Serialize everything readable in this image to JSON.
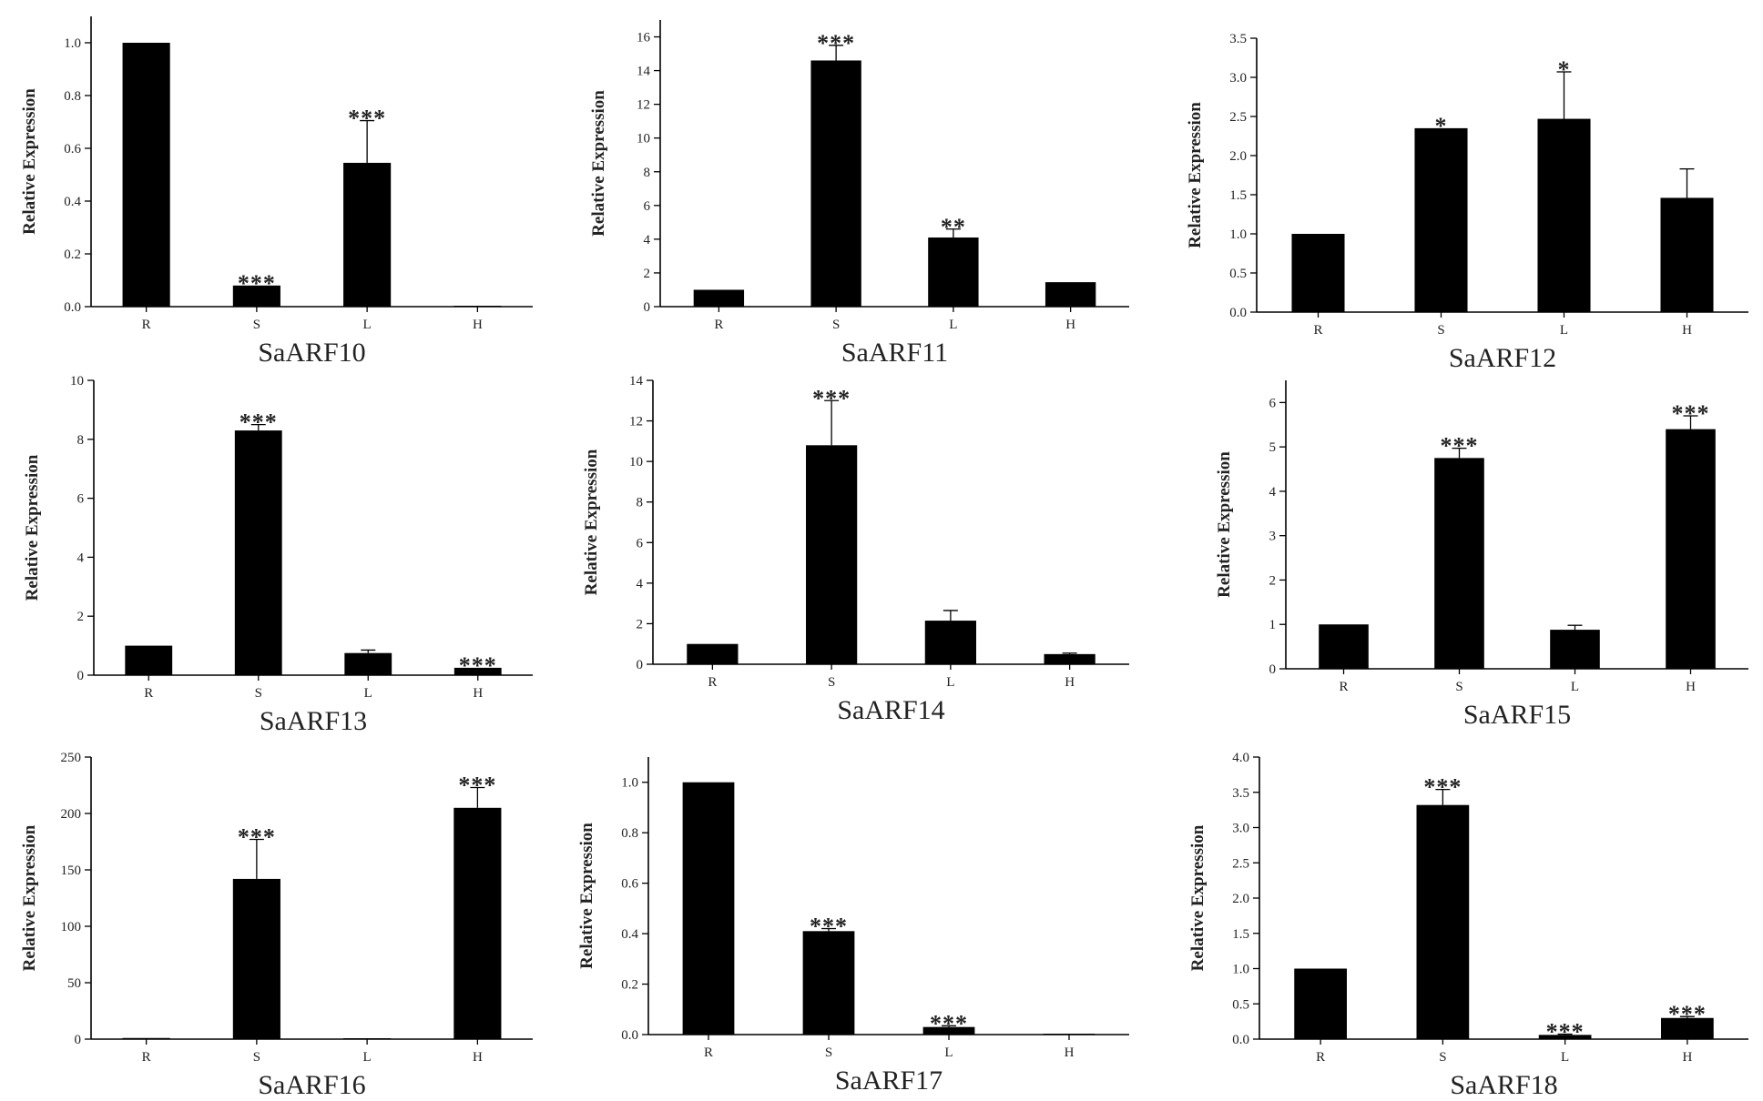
{
  "chart_data": [
    {
      "type": "bar",
      "title": "SaARF10",
      "ylabel": "Relative Expression",
      "categories": [
        "R",
        "S",
        "L",
        "H"
      ],
      "values": [
        1.0,
        0.08,
        0.545,
        0.0
      ],
      "errors": [
        0,
        0,
        0.16,
        0
      ],
      "significance": [
        "",
        "***",
        "***",
        ""
      ],
      "ylim": [
        0,
        1.1
      ],
      "yticks": [
        "0.0",
        "0.2",
        "0.4",
        "0.6",
        "0.8",
        "1.0"
      ]
    },
    {
      "type": "bar",
      "title": "SaARF11",
      "ylabel": "Relative Expression",
      "categories": [
        "R",
        "S",
        "L",
        "H"
      ],
      "values": [
        1.0,
        14.6,
        4.1,
        1.45
      ],
      "errors": [
        0,
        0.9,
        0.5,
        0
      ],
      "significance": [
        "",
        "***",
        "**",
        ""
      ],
      "ylim": [
        0,
        17
      ],
      "yticks": [
        "0",
        "2",
        "4",
        "6",
        "8",
        "10",
        "12",
        "14",
        "16"
      ]
    },
    {
      "type": "bar",
      "title": "SaARF12",
      "ylabel": "Relative Expression",
      "categories": [
        "R",
        "S",
        "L",
        "H"
      ],
      "values": [
        1.0,
        2.35,
        2.47,
        1.46
      ],
      "errors": [
        0,
        0,
        0.6,
        0.37
      ],
      "significance": [
        "",
        "*",
        "*",
        ""
      ],
      "ylim": [
        0,
        3.5
      ],
      "yticks": [
        "0.0",
        "0.5",
        "1.0",
        "1.5",
        "2.0",
        "2.5",
        "3.0",
        "3.5"
      ]
    },
    {
      "type": "bar",
      "title": "SaARF13",
      "ylabel": "Relative Expression",
      "categories": [
        "R",
        "S",
        "L",
        "H"
      ],
      "values": [
        1.0,
        8.3,
        0.75,
        0.25
      ],
      "errors": [
        0,
        0.2,
        0.1,
        0
      ],
      "significance": [
        "",
        "***",
        "",
        "***"
      ],
      "ylim": [
        0,
        10
      ],
      "yticks": [
        "0",
        "2",
        "4",
        "6",
        "8",
        "10"
      ]
    },
    {
      "type": "bar",
      "title": "SaARF14",
      "ylabel": "Relative Expression",
      "categories": [
        "R",
        "S",
        "L",
        "H"
      ],
      "values": [
        1.0,
        10.8,
        2.15,
        0.5
      ],
      "errors": [
        0,
        2.2,
        0.5,
        0.05
      ],
      "significance": [
        "",
        "***",
        "",
        ""
      ],
      "ylim": [
        0,
        14
      ],
      "yticks": [
        "0",
        "2",
        "4",
        "6",
        "8",
        "10",
        "12",
        "14"
      ]
    },
    {
      "type": "bar",
      "title": "SaARF15",
      "ylabel": "Relative Expression",
      "categories": [
        "R",
        "S",
        "L",
        "H"
      ],
      "values": [
        1.0,
        4.75,
        0.88,
        5.4
      ],
      "errors": [
        0,
        0.22,
        0.1,
        0.3
      ],
      "significance": [
        "",
        "***",
        "",
        "***"
      ],
      "ylim": [
        0,
        6.5
      ],
      "yticks": [
        "0",
        "1",
        "2",
        "3",
        "4",
        "5",
        "6"
      ]
    },
    {
      "type": "bar",
      "title": "SaARF16",
      "ylabel": "Relative Expression",
      "categories": [
        "R",
        "S",
        "L",
        "H"
      ],
      "values": [
        1.0,
        142,
        0,
        205
      ],
      "errors": [
        0,
        35,
        0,
        18
      ],
      "significance": [
        "",
        "***",
        "",
        "***"
      ],
      "ylim": [
        0,
        250
      ],
      "yticks": [
        "0",
        "50",
        "100",
        "150",
        "200",
        "250"
      ]
    },
    {
      "type": "bar",
      "title": "SaARF17",
      "ylabel": "Relative Expression",
      "categories": [
        "R",
        "S",
        "L",
        "H"
      ],
      "values": [
        1.0,
        0.41,
        0.03,
        0.0
      ],
      "errors": [
        0,
        0.01,
        0.005,
        0
      ],
      "significance": [
        "",
        "***",
        "***",
        ""
      ],
      "ylim": [
        0,
        1.1
      ],
      "yticks": [
        "0.0",
        "0.2",
        "0.4",
        "0.6",
        "0.8",
        "1.0"
      ]
    },
    {
      "type": "bar",
      "title": "SaARF18",
      "ylabel": "Relative Expression",
      "categories": [
        "R",
        "S",
        "L",
        "H"
      ],
      "values": [
        1.0,
        3.32,
        0.06,
        0.3
      ],
      "errors": [
        0,
        0.22,
        0.01,
        0.02
      ],
      "significance": [
        "",
        "***",
        "***",
        "***"
      ],
      "ylim": [
        0,
        4.0
      ],
      "yticks": [
        "0.0",
        "0.5",
        "1.0",
        "1.5",
        "2.0",
        "2.5",
        "3.0",
        "3.5",
        "4.0"
      ]
    }
  ]
}
